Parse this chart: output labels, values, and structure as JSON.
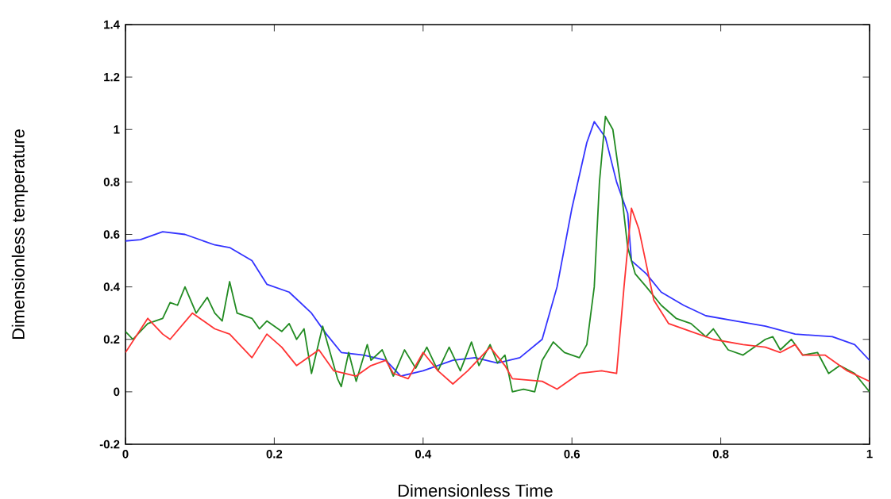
{
  "chart_data": {
    "type": "line",
    "xlabel": "Dimensionless Time",
    "ylabel": "Dimensionless temperature",
    "xlim": [
      0,
      1
    ],
    "ylim": [
      -0.2,
      1.4
    ],
    "xticks": [
      0,
      0.2,
      0.4,
      0.6,
      0.8,
      1
    ],
    "yticks": [
      -0.2,
      0,
      0.2,
      0.4,
      0.6,
      0.8,
      1,
      1.2,
      1.4
    ],
    "grid": false,
    "marker": "none",
    "line_style": "solid",
    "series": [
      {
        "color": "#3333ff",
        "x": [
          0,
          0.02,
          0.05,
          0.08,
          0.12,
          0.14,
          0.17,
          0.19,
          0.22,
          0.25,
          0.27,
          0.29,
          0.32,
          0.35,
          0.37,
          0.4,
          0.44,
          0.47,
          0.5,
          0.53,
          0.56,
          0.58,
          0.6,
          0.62,
          0.63,
          0.645,
          0.66,
          0.675,
          0.68,
          0.7,
          0.72,
          0.75,
          0.78,
          0.82,
          0.86,
          0.9,
          0.95,
          0.98,
          1
        ],
        "values": [
          0.575,
          0.58,
          0.61,
          0.6,
          0.56,
          0.55,
          0.5,
          0.41,
          0.38,
          0.3,
          0.22,
          0.15,
          0.14,
          0.12,
          0.06,
          0.08,
          0.12,
          0.13,
          0.11,
          0.13,
          0.2,
          0.4,
          0.7,
          0.95,
          1.03,
          0.97,
          0.8,
          0.68,
          0.5,
          0.45,
          0.38,
          0.33,
          0.29,
          0.27,
          0.25,
          0.22,
          0.21,
          0.18,
          0.12
        ]
      },
      {
        "color": "#228b22",
        "x": [
          0,
          0.01,
          0.03,
          0.05,
          0.06,
          0.07,
          0.08,
          0.095,
          0.11,
          0.12,
          0.13,
          0.14,
          0.15,
          0.17,
          0.18,
          0.19,
          0.21,
          0.22,
          0.23,
          0.24,
          0.25,
          0.265,
          0.275,
          0.285,
          0.29,
          0.3,
          0.31,
          0.325,
          0.33,
          0.345,
          0.36,
          0.375,
          0.39,
          0.405,
          0.42,
          0.435,
          0.45,
          0.465,
          0.475,
          0.49,
          0.5,
          0.51,
          0.52,
          0.535,
          0.55,
          0.56,
          0.575,
          0.59,
          0.61,
          0.62,
          0.63,
          0.637,
          0.645,
          0.655,
          0.665,
          0.675,
          0.685,
          0.7,
          0.72,
          0.74,
          0.76,
          0.78,
          0.79,
          0.81,
          0.83,
          0.86,
          0.87,
          0.88,
          0.895,
          0.91,
          0.93,
          0.945,
          0.96,
          0.98,
          1
        ],
        "values": [
          0.23,
          0.2,
          0.26,
          0.28,
          0.34,
          0.33,
          0.4,
          0.3,
          0.36,
          0.3,
          0.27,
          0.42,
          0.3,
          0.28,
          0.24,
          0.27,
          0.23,
          0.26,
          0.2,
          0.24,
          0.07,
          0.25,
          0.15,
          0.05,
          0.02,
          0.15,
          0.04,
          0.18,
          0.12,
          0.16,
          0.06,
          0.16,
          0.09,
          0.17,
          0.08,
          0.17,
          0.08,
          0.19,
          0.1,
          0.18,
          0.11,
          0.14,
          0.0,
          0.01,
          0.0,
          0.12,
          0.19,
          0.15,
          0.13,
          0.18,
          0.4,
          0.8,
          1.05,
          1.0,
          0.8,
          0.55,
          0.45,
          0.4,
          0.33,
          0.28,
          0.26,
          0.21,
          0.24,
          0.16,
          0.14,
          0.2,
          0.21,
          0.16,
          0.2,
          0.14,
          0.15,
          0.07,
          0.1,
          0.07,
          0.0
        ]
      },
      {
        "color": "#ff3333",
        "x": [
          0,
          0.03,
          0.05,
          0.06,
          0.09,
          0.12,
          0.14,
          0.17,
          0.19,
          0.21,
          0.23,
          0.26,
          0.28,
          0.31,
          0.33,
          0.35,
          0.36,
          0.38,
          0.4,
          0.42,
          0.44,
          0.46,
          0.49,
          0.51,
          0.52,
          0.56,
          0.58,
          0.61,
          0.64,
          0.66,
          0.67,
          0.68,
          0.69,
          0.71,
          0.73,
          0.76,
          0.79,
          0.83,
          0.86,
          0.88,
          0.9,
          0.91,
          0.94,
          0.97,
          1
        ],
        "values": [
          0.15,
          0.28,
          0.22,
          0.2,
          0.3,
          0.24,
          0.22,
          0.13,
          0.22,
          0.17,
          0.1,
          0.16,
          0.08,
          0.06,
          0.1,
          0.12,
          0.07,
          0.05,
          0.15,
          0.08,
          0.03,
          0.08,
          0.17,
          0.1,
          0.05,
          0.04,
          0.01,
          0.07,
          0.08,
          0.07,
          0.4,
          0.7,
          0.62,
          0.35,
          0.26,
          0.23,
          0.2,
          0.18,
          0.17,
          0.15,
          0.18,
          0.14,
          0.14,
          0.08,
          0.04
        ]
      }
    ]
  }
}
